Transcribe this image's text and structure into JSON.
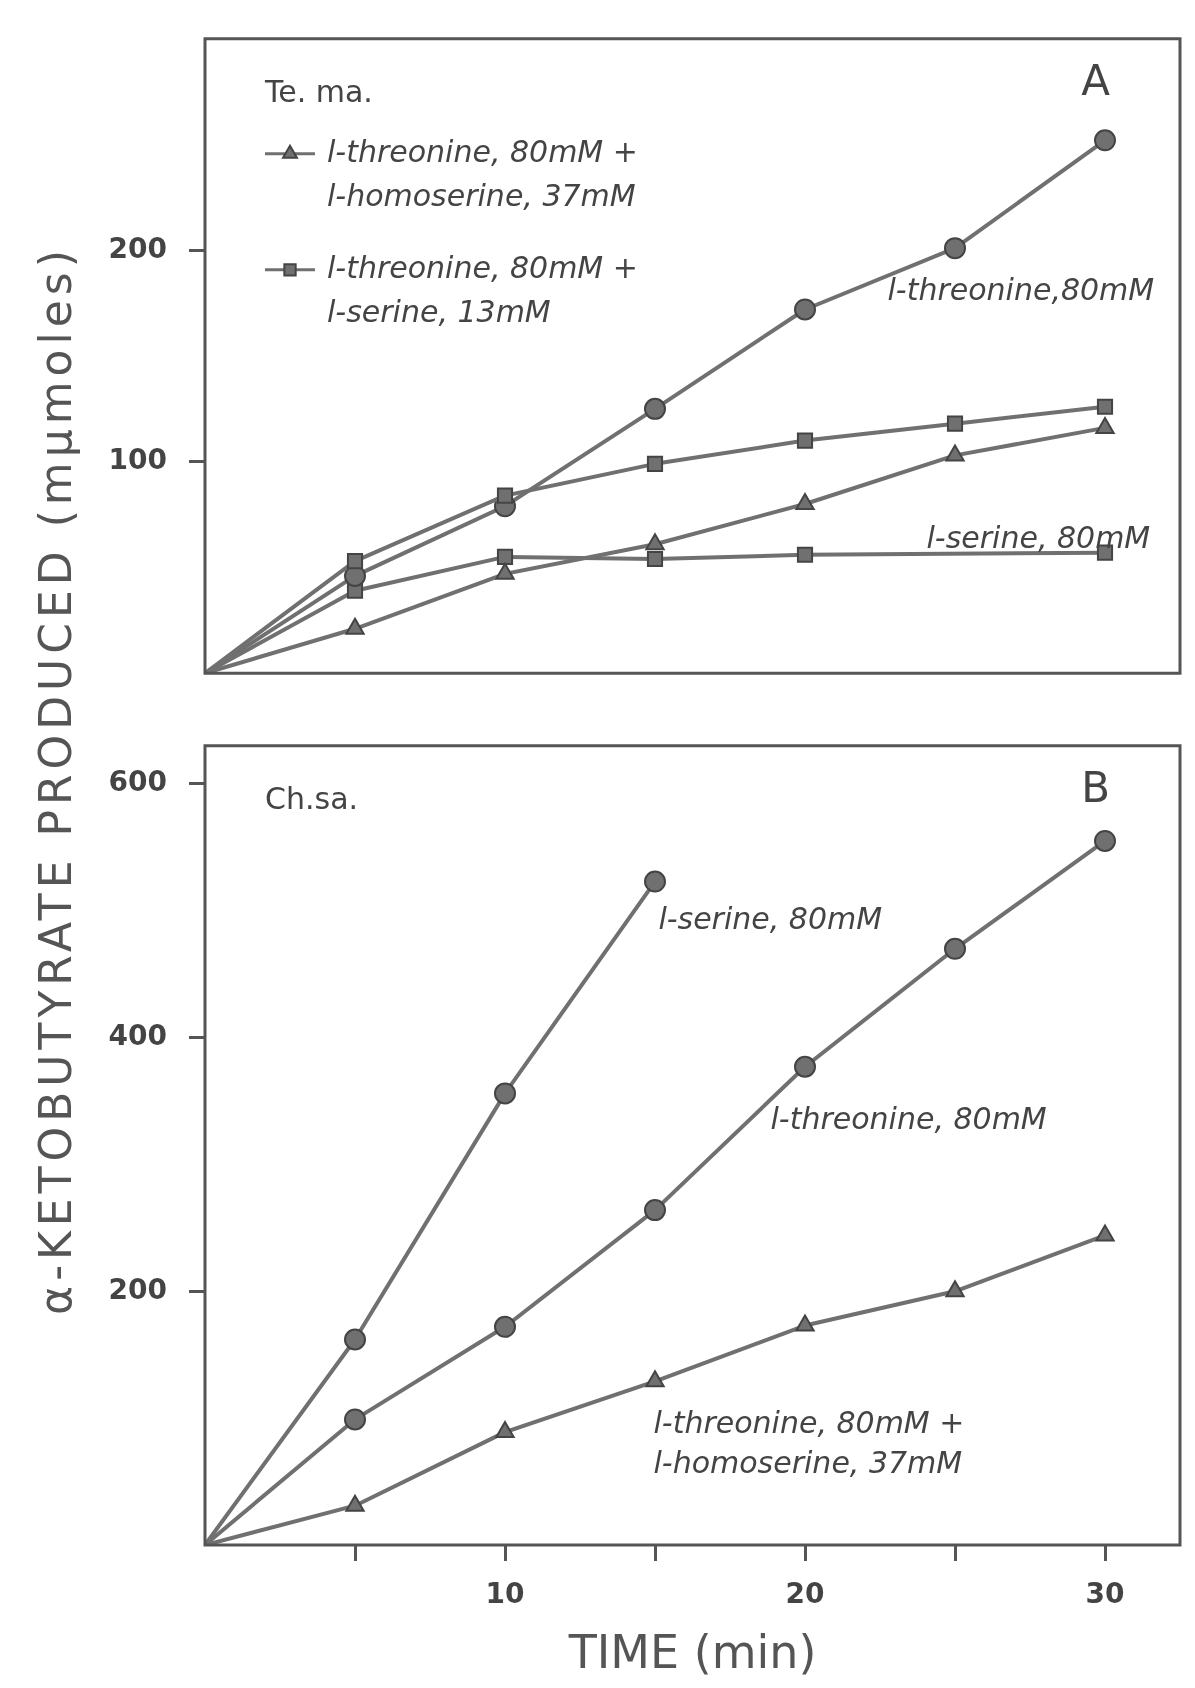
{
  "chart_data": [
    {
      "type": "line",
      "ylabel": "α-KETOBUTYRATE PRODUCED (mμmoles)",
      "x": [
        0,
        5,
        10,
        15,
        20,
        25,
        30
      ],
      "xlim": [
        0,
        32.5
      ],
      "ylim": [
        0,
        300
      ],
      "yticks": [
        100,
        200
      ],
      "tick_labels": "y",
      "legend": "top left",
      "annotations": [
        "Te. ma.",
        "A",
        "l-threonine,80mM",
        "l-serine, 80mM"
      ],
      "series": [
        {
          "name": "l-threonine, 80mM +\nl-homoserine, 37mM",
          "color": "#707070",
          "marker": "triangle",
          "values": [
            0,
            21,
            47,
            61,
            80,
            103,
            116
          ]
        },
        {
          "name": "l-threonine, 80mM +\nl-serine, 13mM",
          "color": "#707070",
          "marker": "square",
          "values": [
            0,
            53,
            84,
            99,
            110,
            118,
            126
          ]
        },
        {
          "color": "#707070",
          "marker": "circle",
          "values": [
            0,
            46,
            79,
            125,
            172,
            201,
            252
          ]
        },
        {
          "color": "#707070",
          "marker": "square",
          "values": [
            0,
            39,
            55,
            54,
            56,
            null,
            57
          ]
        }
      ]
    },
    {
      "type": "line",
      "xlabel": "TIME (min)",
      "x": [
        0,
        5,
        10,
        15,
        20,
        25,
        30
      ],
      "xlim": [
        0,
        32.5
      ],
      "xticks": [
        {
          "value": 5,
          "label": null
        },
        10,
        {
          "value": 15,
          "label": null
        },
        20,
        {
          "value": 25,
          "label": null
        },
        30
      ],
      "ylim": [
        0,
        630
      ],
      "yticks": [
        200,
        400,
        600
      ],
      "annotations": [
        "Ch.sa.",
        "B",
        "l-serine, 80mM",
        "l-threonine, 80mM",
        "l-threonine, 80mM +\nl-homoserine, 37mM"
      ],
      "series": [
        {
          "color": "#707070",
          "marker": "circle",
          "values": [
            0,
            162,
            356,
            523,
            null,
            null,
            null
          ]
        },
        {
          "color": "#707070",
          "marker": "circle",
          "values": [
            0,
            99,
            172,
            264,
            377,
            470,
            555
          ]
        },
        {
          "color": "#707070",
          "marker": "triangle",
          "values": [
            0,
            31,
            89,
            129,
            173,
            200,
            244
          ]
        }
      ]
    }
  ]
}
